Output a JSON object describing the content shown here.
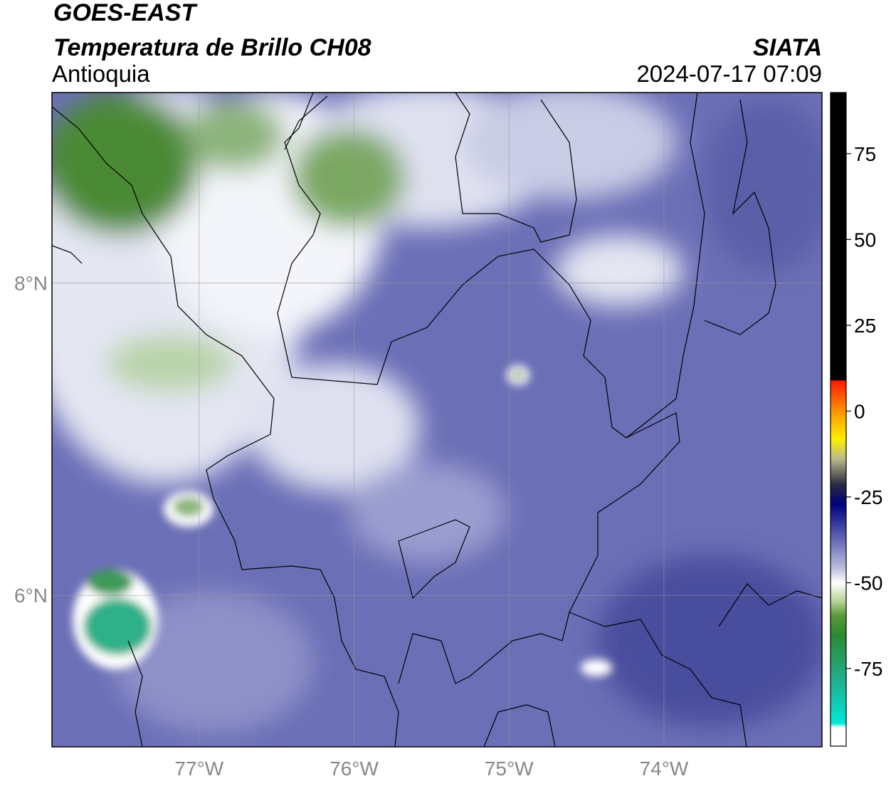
{
  "header": {
    "title": "GOES-EAST",
    "subtitle": "Temperatura de Brillo CH08",
    "region": "Antioquia",
    "source": "SIATA",
    "datetime": "2024-07-17 07:09"
  },
  "map": {
    "xlim": [
      -77.95,
      -72.98
    ],
    "ylim": [
      5.03,
      9.22
    ],
    "xticks": [
      {
        "value": -77,
        "label": "77°W"
      },
      {
        "value": -76,
        "label": "76°W"
      },
      {
        "value": -75,
        "label": "75°W"
      },
      {
        "value": -74,
        "label": "74°W"
      }
    ],
    "yticks": [
      {
        "value": 8,
        "label": "8°N"
      },
      {
        "value": 6,
        "label": "6°N"
      }
    ],
    "grid": true
  },
  "colorbar": {
    "ylim": [
      -97.6,
      92.8
    ],
    "yticks": [
      75,
      50,
      25,
      0,
      -25,
      -50,
      -75
    ]
  }
}
